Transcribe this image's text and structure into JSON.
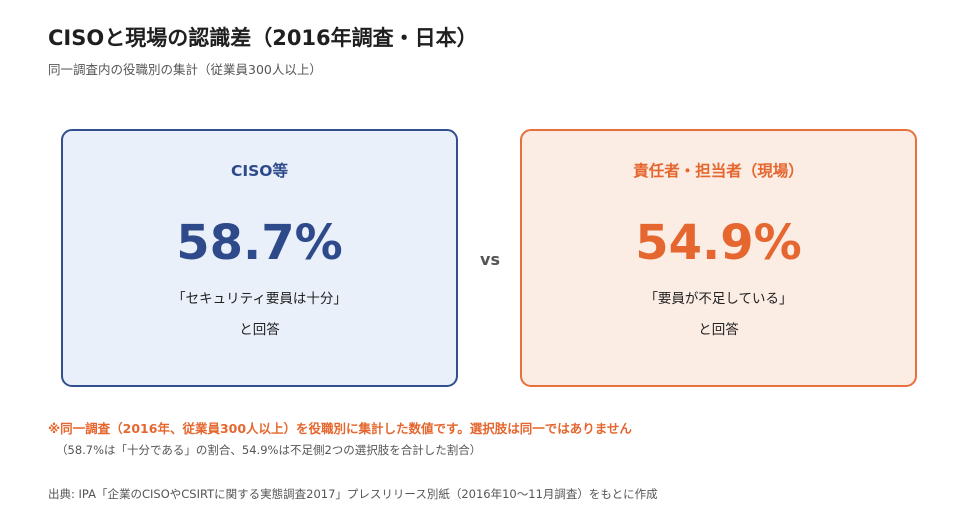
{
  "title": "CISOと現場の認識差（2016年調査・日本）",
  "subtitle": "同一調査内の役職別の集計（従業員300人以上）",
  "left_card": {
    "label": "CISO等",
    "value": "58.7%",
    "description": "「セキュリティ要員は十分」",
    "answer": "と回答",
    "accent_color": "#2e4a8b"
  },
  "vs_label": "vs",
  "right_card": {
    "label": "責任者・担当者（現場）",
    "value": "54.9%",
    "description": "「要員が不足している」",
    "answer": "と回答",
    "accent_color": "#e5672f"
  },
  "notes": {
    "main": "※同一調査（2016年、従業員300人以上）を役職別に集計した数値です。選択肢は同一ではありません",
    "sub": "（58.7%は「十分である」の割合、54.9%は不足側2つの選択肢を合計した割合）"
  },
  "source": "出典: IPA「企業のCISOやCSIRTに関する実態調査2017」プレスリリース別紙（2016年10〜11月調査）をもとに作成"
}
